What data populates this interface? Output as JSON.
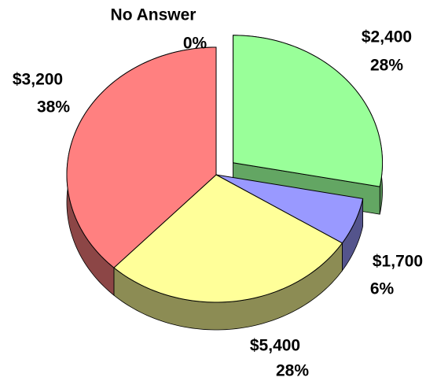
{
  "chart_data": {
    "type": "pie",
    "categories": [
      "$2,400",
      "$1,700",
      "$5,400",
      "$3,200",
      "No Answer"
    ],
    "values": [
      28,
      6,
      28,
      38,
      0
    ],
    "value_labels": [
      "28%",
      "6%",
      "28%",
      "38%",
      "0%"
    ],
    "colors": [
      "#99ff99",
      "#9999ff",
      "#ffff99",
      "#ff8080",
      "#ffffff"
    ],
    "exploded": [
      true,
      false,
      false,
      false,
      false
    ]
  }
}
